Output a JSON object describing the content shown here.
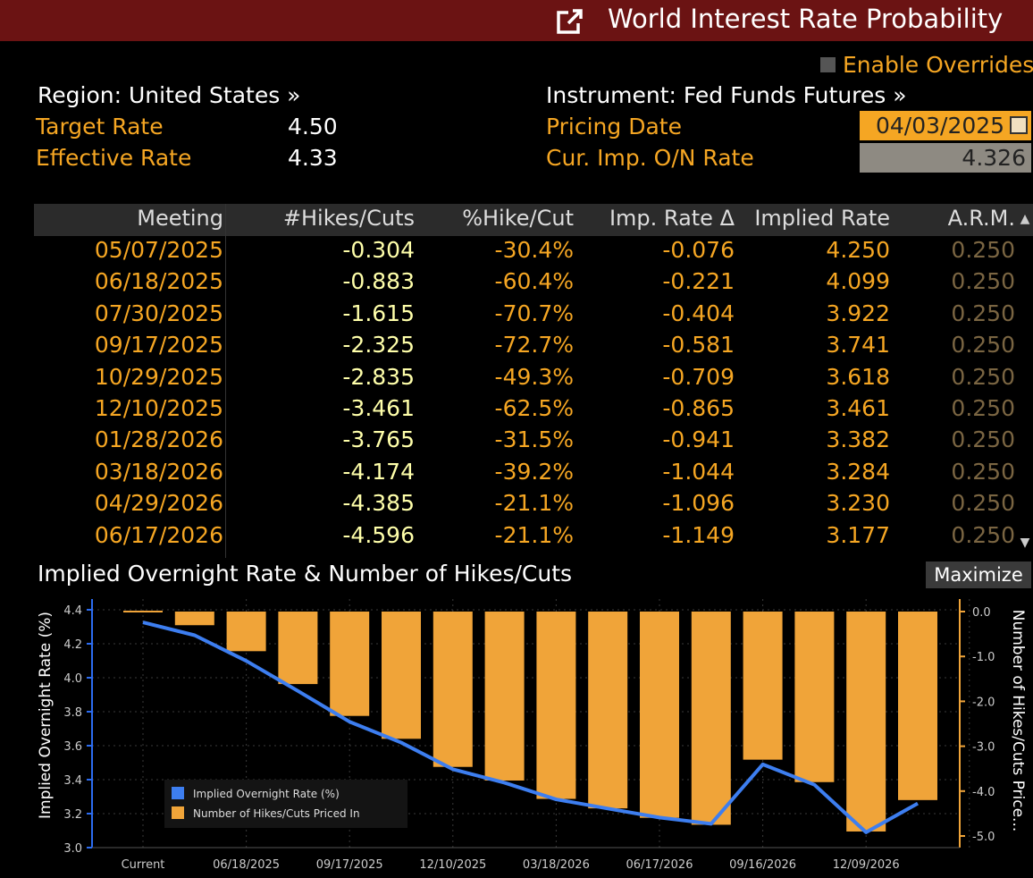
{
  "window": {
    "title": "World Interest Rate Probability",
    "enable_overrides": "Enable Overrides"
  },
  "info": {
    "region": "Region: United States »",
    "instrument": "Instrument: Fed Funds Futures »",
    "target_rate_label": "Target Rate",
    "target_rate_value": "4.50",
    "effective_rate_label": "Effective Rate",
    "effective_rate_value": "4.33",
    "pricing_date_label": "Pricing Date",
    "pricing_date_value": "04/03/2025",
    "cur_imp_label": "Cur. Imp. O/N Rate",
    "cur_imp_value": "4.326"
  },
  "table": {
    "headers": [
      "Meeting",
      "#Hikes/Cuts",
      "%Hike/Cut",
      "Imp. Rate Δ",
      "Implied Rate",
      "A.R.M."
    ],
    "rows": [
      [
        "05/07/2025",
        "-0.304",
        "-30.4%",
        "-0.076",
        "4.250",
        "0.250"
      ],
      [
        "06/18/2025",
        "-0.883",
        "-60.4%",
        "-0.221",
        "4.099",
        "0.250"
      ],
      [
        "07/30/2025",
        "-1.615",
        "-70.7%",
        "-0.404",
        "3.922",
        "0.250"
      ],
      [
        "09/17/2025",
        "-2.325",
        "-72.7%",
        "-0.581",
        "3.741",
        "0.250"
      ],
      [
        "10/29/2025",
        "-2.835",
        "-49.3%",
        "-0.709",
        "3.618",
        "0.250"
      ],
      [
        "12/10/2025",
        "-3.461",
        "-62.5%",
        "-0.865",
        "3.461",
        "0.250"
      ],
      [
        "01/28/2026",
        "-3.765",
        "-31.5%",
        "-0.941",
        "3.382",
        "0.250"
      ],
      [
        "03/18/2026",
        "-4.174",
        "-39.2%",
        "-1.044",
        "3.284",
        "0.250"
      ],
      [
        "04/29/2026",
        "-4.385",
        "-21.1%",
        "-1.096",
        "3.230",
        "0.250"
      ],
      [
        "06/17/2026",
        "-4.596",
        "-21.1%",
        "-1.149",
        "3.177",
        "0.250"
      ]
    ]
  },
  "chart": {
    "maximize_label": "Maximize"
  },
  "chart_data": {
    "type": "bar",
    "title": "Implied Overnight Rate & Number of Hikes/Cuts",
    "ylabel_left": "Implied Overnight Rate (%)",
    "ylabel_right": "Number of Hikes/Cuts Price...",
    "x_tick_labels": [
      "Current",
      "06/18/2025",
      "09/17/2025",
      "12/10/2025",
      "03/18/2026",
      "06/17/2026",
      "09/16/2026",
      "12/09/2026"
    ],
    "left_ylim": [
      3.0,
      4.4
    ],
    "left_ticks": [
      "4.4",
      "4.2",
      "4.0",
      "3.8",
      "3.6",
      "3.4",
      "3.2",
      "3.0"
    ],
    "right_ylim": [
      -5.2,
      0.3
    ],
    "right_ticks": [
      "0.0",
      "-1.0",
      "-2.0",
      "-3.0",
      "-4.0",
      "-5.0"
    ],
    "legend": [
      "Implied Overnight Rate (%)",
      "Number of Hikes/Cuts Priced In"
    ],
    "legend_position": "bottom-left",
    "series": [
      {
        "name": "Number of Hikes/Cuts Priced In",
        "type": "bar",
        "axis": "right",
        "color": "#f0a439",
        "values": [
          0,
          -0.304,
          -0.883,
          -1.615,
          -2.325,
          -2.835,
          -3.461,
          -3.765,
          -4.174,
          -4.385,
          -4.596,
          -4.75,
          -3.3,
          -3.8,
          -4.9,
          -4.2
        ]
      },
      {
        "name": "Implied Overnight Rate (%)",
        "type": "line",
        "axis": "left",
        "color": "#3d7ef0",
        "values": [
          4.326,
          4.25,
          4.099,
          3.922,
          3.741,
          3.618,
          3.461,
          3.382,
          3.284,
          3.23,
          3.177,
          3.14,
          3.49,
          3.37,
          3.09,
          3.26
        ]
      }
    ]
  }
}
